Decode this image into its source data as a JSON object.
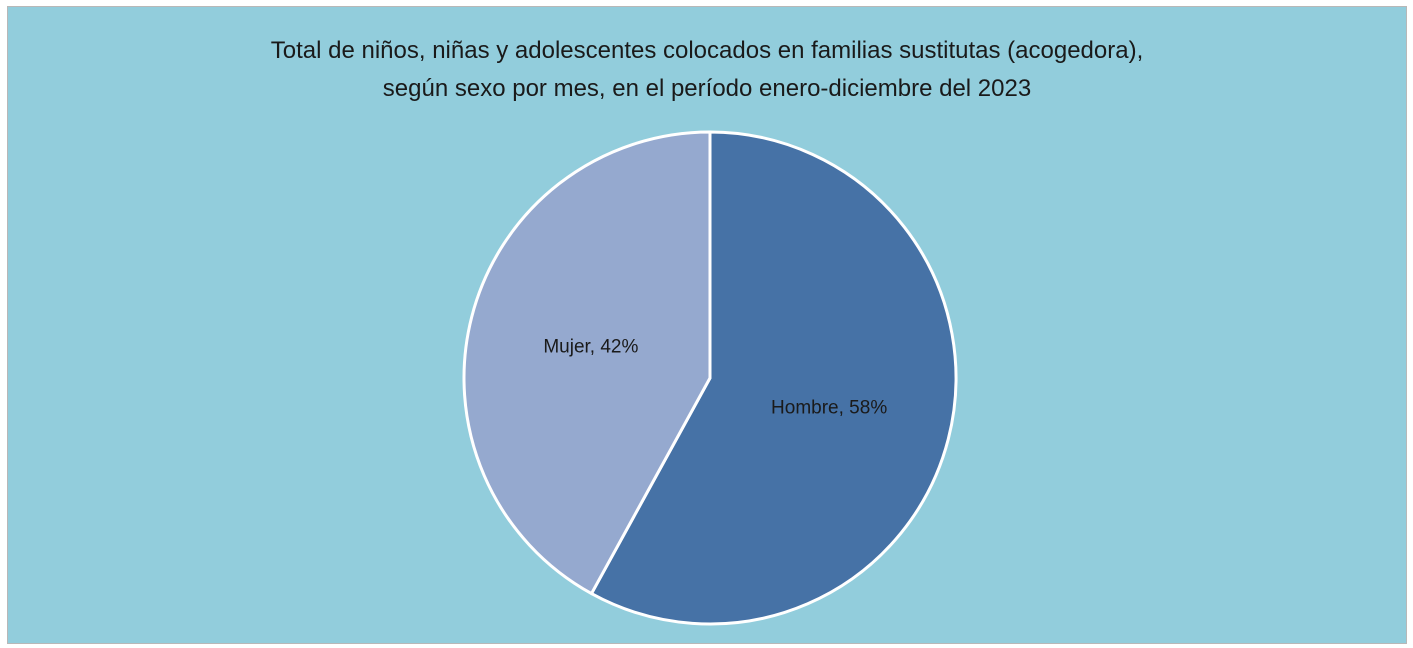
{
  "chart_data": {
    "type": "pie",
    "title": "Total de niños, niñas y adolescentes colocados en familias sustitutas (acogedora),",
    "subtitle": "según sexo por mes, en el período enero-diciembre del 2023",
    "categories": [
      "Hombre",
      "Mujer"
    ],
    "values": [
      58,
      42
    ],
    "value_unit": "%",
    "labels": [
      "Hombre, 58%",
      "Mujer, 42%"
    ],
    "colors": [
      "#4672a6",
      "#95a9cf"
    ],
    "start_angle": "12 o'clock",
    "direction": "clockwise",
    "legend": "none",
    "background": "#92cddc"
  }
}
